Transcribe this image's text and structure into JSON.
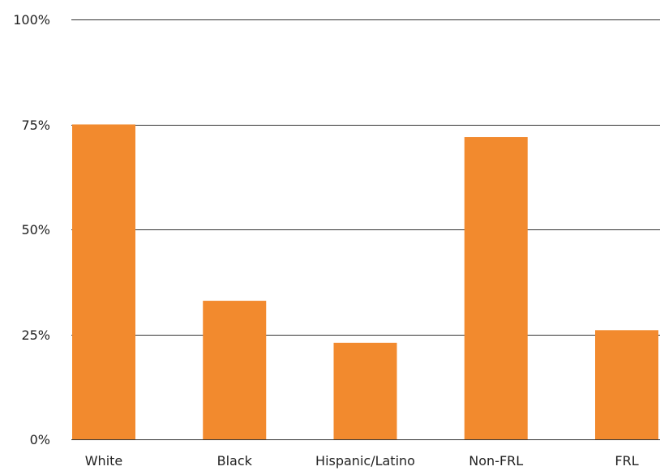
{
  "chart_data": {
    "type": "bar",
    "title": "",
    "xlabel": "",
    "ylabel": "",
    "categories": [
      "White",
      "Black",
      "Hispanic/Latino",
      "Non-FRL",
      "FRL"
    ],
    "values": [
      75,
      33,
      23,
      72,
      26
    ],
    "ylim": [
      0,
      100
    ],
    "yticks": [
      0,
      25,
      50,
      75,
      100
    ],
    "ytick_labels": [
      "0%",
      "25%",
      "50%",
      "75%",
      "100%"
    ],
    "grid": true,
    "legend": "none",
    "bar_color": "#F28A2E",
    "grid_color": "#333333"
  }
}
